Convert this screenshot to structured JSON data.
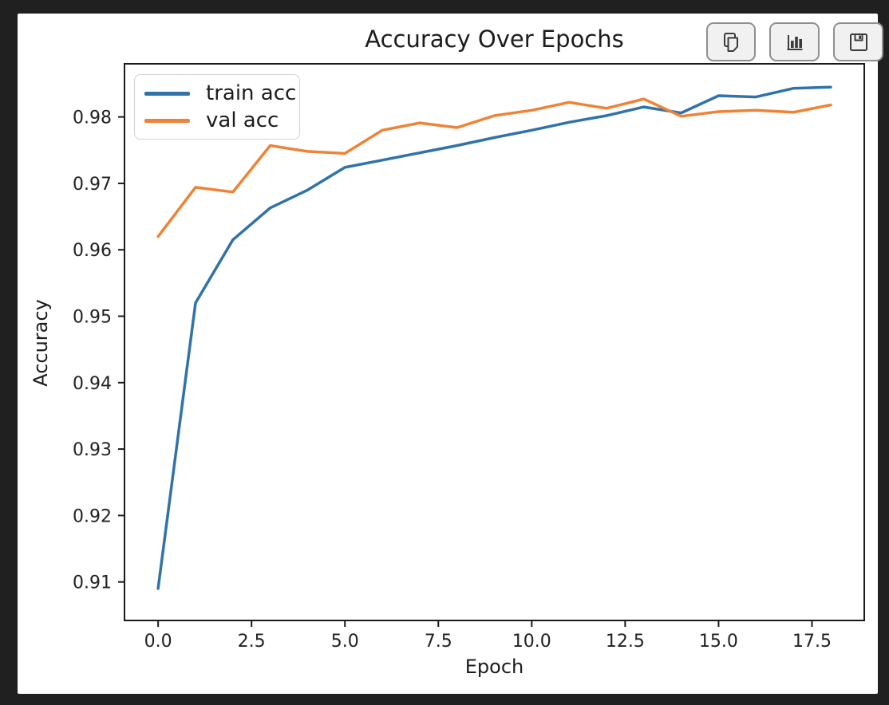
{
  "frame": {
    "background_color": "#202020",
    "panel_color": "#ffffff"
  },
  "toolbar": {
    "buttons": [
      {
        "label": "copy",
        "icon": "copy-icon"
      },
      {
        "label": "chart",
        "icon": "bar-chart-icon"
      },
      {
        "label": "save",
        "icon": "save-icon"
      }
    ]
  },
  "chart_data": {
    "type": "line",
    "title": "Accuracy Over Epochs",
    "xlabel": "Epoch",
    "ylabel": "Accuracy",
    "x": [
      0,
      1,
      2,
      3,
      4,
      5,
      6,
      7,
      8,
      9,
      10,
      11,
      12,
      13,
      14,
      15,
      16,
      17,
      18
    ],
    "series": [
      {
        "name": "train acc",
        "color": "#3173a9",
        "values": [
          0.909,
          0.952,
          0.9615,
          0.9663,
          0.969,
          0.9724,
          0.9735,
          0.9746,
          0.9757,
          0.9769,
          0.978,
          0.9792,
          0.9802,
          0.9815,
          0.9806,
          0.9832,
          0.983,
          0.9843,
          0.9845
        ]
      },
      {
        "name": "val acc",
        "color": "#ef8335",
        "values": [
          0.962,
          0.9694,
          0.9687,
          0.9757,
          0.9748,
          0.9745,
          0.978,
          0.9791,
          0.9784,
          0.9802,
          0.981,
          0.9822,
          0.9813,
          0.9827,
          0.9801,
          0.9808,
          0.981,
          0.9807,
          0.9818
        ]
      }
    ],
    "xlim": [
      -0.9,
      18.9
    ],
    "ylim": [
      0.9042,
      0.988
    ],
    "xticks": [
      0.0,
      2.5,
      5.0,
      7.5,
      10.0,
      12.5,
      15.0,
      17.5
    ],
    "xtick_labels": [
      "0.0",
      "2.5",
      "5.0",
      "7.5",
      "10.0",
      "12.5",
      "15.0",
      "17.5"
    ],
    "yticks": [
      0.91,
      0.92,
      0.93,
      0.94,
      0.95,
      0.96,
      0.97,
      0.98
    ],
    "ytick_labels": [
      "0.91",
      "0.92",
      "0.93",
      "0.94",
      "0.95",
      "0.96",
      "0.97",
      "0.98"
    ],
    "grid": false,
    "legend_position": "upper-left",
    "spine_color": "#1a1a1a",
    "tick_text_color": "#212121"
  }
}
